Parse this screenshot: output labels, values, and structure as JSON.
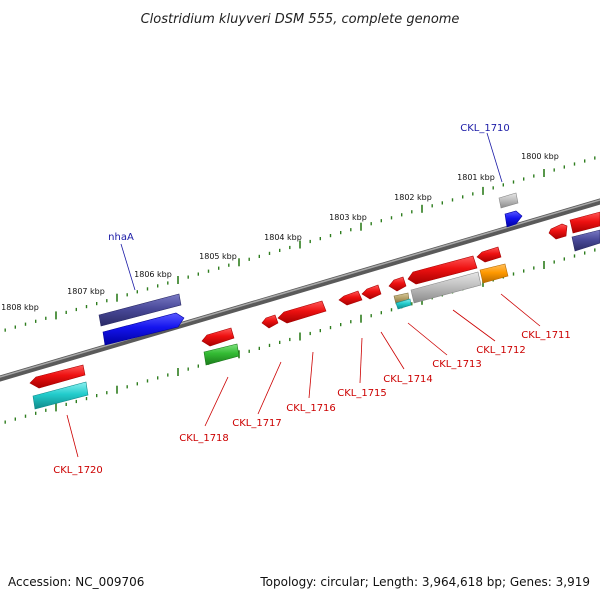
{
  "title": "Clostridium kluyveri DSM 555, complete genome",
  "footer": {
    "accession": "Accession: NC_009706",
    "info": "Topology: circular; Length: 3,964,618 bp; Genes: 3,919"
  },
  "ruler_labels": [
    "1808 kbp",
    "1807 kbp",
    "1806 kbp",
    "1805 kbp",
    "1804 kbp",
    "1803 kbp",
    "1802 kbp",
    "1801 kbp",
    "1800 kbp"
  ],
  "forward_gene_labels": [
    "nhaA",
    "CKL_1710"
  ],
  "reverse_gene_labels": [
    "CKL_1720",
    "CKL_1718",
    "CKL_1717",
    "CKL_1716",
    "CKL_1715",
    "CKL_1714",
    "CKL_1713",
    "CKL_1712",
    "CKL_1711"
  ],
  "colors": {
    "backbone": "#6e6e6e",
    "ruler_tick": "#2e7d1e",
    "gene_red": "#ee1111",
    "gene_navy": "#4a4a9a",
    "gene_blue": "#1414ee",
    "gene_gray": "#c0c0c0",
    "gene_green": "#33bb33",
    "gene_cyan": "#22cccc",
    "gene_orange": "#ff9900",
    "gene_olive": "#b5a36a",
    "label_blue": "#1a1aa6",
    "label_red": "#cc0000"
  }
}
